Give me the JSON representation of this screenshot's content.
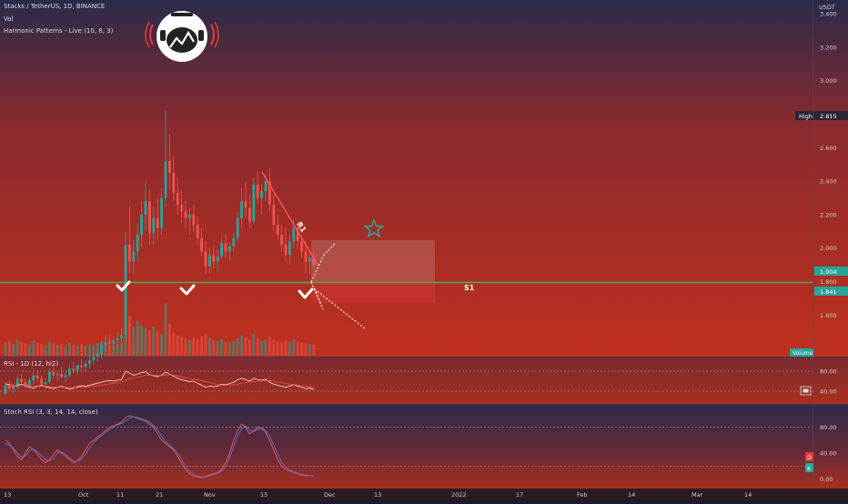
{
  "header": {
    "symbol_line": "Stacks / TetherUS, 1D, BINANCE",
    "vol_label": "Vol",
    "indicator_label": "Harmonic Patterns - Live (10, 8, 3)"
  },
  "colors": {
    "up": "#26a69a",
    "down": "#ef5350",
    "level": "#4caf50",
    "trendline": "#ff5252"
  },
  "chart_data": [
    {
      "type": "candlestick",
      "title": "Stacks / TetherUS, 1D, BINANCE",
      "currency": "USDT",
      "yticks": [
        "3.400",
        "3.200",
        "3.000",
        "2.800",
        "2.600",
        "2.400",
        "2.200",
        "2.000",
        "1.800",
        "1.600"
      ],
      "xticks": [
        "13",
        "Oct",
        "11",
        "21",
        "Nov",
        "15",
        "Dec",
        "13",
        "2022",
        "17",
        "Feb",
        "14",
        "Mar",
        "14"
      ],
      "ylim": [
        1.39,
        3.46
      ],
      "high_label": "High",
      "high_value": "2.815",
      "price_label_1": "1.904",
      "price_label_2": "1.841",
      "volume_badge": "Volume",
      "annotations": {
        "resistance_label": "R1",
        "support_label": "S1"
      },
      "candles_ohlc": [
        [
          1.13,
          1.2,
          1.12,
          1.18
        ],
        [
          1.18,
          1.21,
          1.15,
          1.16
        ],
        [
          1.16,
          1.19,
          1.13,
          1.17
        ],
        [
          1.17,
          1.24,
          1.16,
          1.22
        ],
        [
          1.22,
          1.25,
          1.18,
          1.2
        ],
        [
          1.2,
          1.22,
          1.16,
          1.18
        ],
        [
          1.18,
          1.23,
          1.17,
          1.21
        ],
        [
          1.21,
          1.26,
          1.19,
          1.24
        ],
        [
          1.24,
          1.27,
          1.2,
          1.22
        ],
        [
          1.22,
          1.24,
          1.18,
          1.19
        ],
        [
          1.19,
          1.22,
          1.16,
          1.2
        ],
        [
          1.2,
          1.28,
          1.19,
          1.26
        ],
        [
          1.26,
          1.3,
          1.22,
          1.24
        ],
        [
          1.24,
          1.27,
          1.21,
          1.25
        ],
        [
          1.25,
          1.29,
          1.22,
          1.23
        ],
        [
          1.23,
          1.26,
          1.2,
          1.24
        ],
        [
          1.24,
          1.3,
          1.23,
          1.28
        ],
        [
          1.28,
          1.32,
          1.25,
          1.27
        ],
        [
          1.27,
          1.31,
          1.24,
          1.3
        ],
        [
          1.3,
          1.34,
          1.27,
          1.29
        ],
        [
          1.29,
          1.33,
          1.26,
          1.31
        ],
        [
          1.31,
          1.36,
          1.28,
          1.33
        ],
        [
          1.33,
          1.38,
          1.3,
          1.35
        ],
        [
          1.35,
          1.4,
          1.32,
          1.37
        ],
        [
          1.37,
          1.45,
          1.34,
          1.42
        ],
        [
          1.42,
          1.48,
          1.38,
          1.44
        ],
        [
          1.44,
          1.49,
          1.4,
          1.43
        ],
        [
          1.43,
          1.47,
          1.39,
          1.45
        ],
        [
          1.45,
          1.5,
          1.41,
          1.46
        ],
        [
          1.46,
          1.52,
          1.43,
          1.48
        ],
        [
          1.48,
          2.1,
          1.46,
          2.02
        ],
        [
          2.02,
          2.25,
          1.85,
          1.92
        ],
        [
          1.92,
          2.05,
          1.84,
          1.98
        ],
        [
          1.98,
          2.15,
          1.92,
          2.08
        ],
        [
          2.08,
          2.28,
          2.01,
          2.2
        ],
        [
          2.2,
          2.4,
          2.1,
          2.28
        ],
        [
          2.28,
          2.35,
          2.02,
          2.09
        ],
        [
          2.09,
          2.25,
          2.02,
          2.18
        ],
        [
          2.18,
          2.3,
          2.05,
          2.12
        ],
        [
          2.12,
          2.36,
          2.08,
          2.3
        ],
        [
          2.3,
          2.82,
          2.25,
          2.52
        ],
        [
          2.52,
          2.68,
          2.35,
          2.45
        ],
        [
          2.45,
          2.55,
          2.28,
          2.33
        ],
        [
          2.33,
          2.42,
          2.2,
          2.26
        ],
        [
          2.26,
          2.35,
          2.15,
          2.22
        ],
        [
          2.22,
          2.28,
          2.12,
          2.18
        ],
        [
          2.18,
          2.24,
          2.08,
          2.2
        ],
        [
          2.2,
          2.26,
          2.1,
          2.14
        ],
        [
          2.14,
          2.19,
          2.02,
          2.06
        ],
        [
          2.06,
          2.12,
          1.95,
          1.98
        ],
        [
          1.98,
          2.04,
          1.84,
          1.89
        ],
        [
          1.89,
          2.0,
          1.85,
          1.96
        ],
        [
          1.96,
          2.02,
          1.88,
          1.92
        ],
        [
          1.92,
          1.99,
          1.86,
          1.95
        ],
        [
          1.95,
          2.06,
          1.93,
          2.03
        ],
        [
          2.03,
          2.08,
          1.94,
          1.98
        ],
        [
          1.98,
          2.03,
          1.93,
          2.01
        ],
        [
          2.01,
          2.09,
          1.98,
          2.06
        ],
        [
          2.06,
          2.22,
          2.04,
          2.18
        ],
        [
          2.18,
          2.36,
          2.12,
          2.28
        ],
        [
          2.28,
          2.4,
          2.18,
          2.24
        ],
        [
          2.24,
          2.32,
          2.12,
          2.16
        ],
        [
          2.16,
          2.42,
          2.14,
          2.38
        ],
        [
          2.38,
          2.46,
          2.26,
          2.3
        ],
        [
          2.3,
          2.38,
          2.2,
          2.34
        ],
        [
          2.34,
          2.44,
          2.28,
          2.4
        ],
        [
          2.4,
          2.48,
          2.22,
          2.26
        ],
        [
          2.26,
          2.32,
          2.1,
          2.14
        ],
        [
          2.14,
          2.2,
          2.05,
          2.08
        ],
        [
          2.08,
          2.14,
          1.98,
          2.02
        ],
        [
          2.02,
          2.12,
          1.92,
          1.96
        ],
        [
          1.96,
          2.08,
          1.9,
          2.04
        ],
        [
          2.04,
          2.18,
          2.0,
          2.12
        ],
        [
          2.12,
          2.16,
          2.0,
          2.04
        ],
        [
          2.04,
          2.08,
          1.94,
          1.98
        ],
        [
          1.98,
          2.04,
          1.85,
          1.92
        ],
        [
          1.92,
          1.98,
          1.84,
          1.94
        ],
        [
          1.94,
          1.98,
          1.88,
          1.9
        ]
      ],
      "volumes": [
        0.18,
        0.2,
        0.16,
        0.22,
        0.19,
        0.17,
        0.15,
        0.21,
        0.18,
        0.16,
        0.14,
        0.19,
        0.17,
        0.15,
        0.16,
        0.13,
        0.18,
        0.15,
        0.14,
        0.16,
        0.13,
        0.15,
        0.14,
        0.17,
        0.19,
        0.16,
        0.15,
        0.14,
        0.16,
        0.18,
        0.95,
        0.55,
        0.4,
        0.48,
        0.42,
        0.38,
        0.35,
        0.4,
        0.34,
        0.3,
        0.72,
        0.45,
        0.32,
        0.28,
        0.26,
        0.24,
        0.22,
        0.25,
        0.23,
        0.27,
        0.3,
        0.24,
        0.21,
        0.2,
        0.22,
        0.19,
        0.18,
        0.2,
        0.24,
        0.28,
        0.26,
        0.22,
        0.3,
        0.24,
        0.21,
        0.23,
        0.27,
        0.22,
        0.2,
        0.18,
        0.21,
        0.19,
        0.23,
        0.2,
        0.18,
        0.17,
        0.16,
        0.15
      ]
    },
    {
      "type": "line",
      "title": "RSI - 1D (12, hl2)",
      "yticks": [
        "80.00",
        "40.00"
      ],
      "ylim": [
        20,
        100
      ],
      "series": [
        {
          "values": [
            55,
            53,
            50,
            52,
            54,
            51,
            48,
            46,
            50,
            52,
            49,
            47,
            45,
            48,
            50,
            47,
            44,
            46,
            49,
            51,
            50,
            52,
            54,
            56,
            58,
            60,
            61,
            60,
            62,
            63,
            80,
            76,
            72,
            74,
            77,
            79,
            73,
            71,
            69,
            72,
            78,
            74,
            70,
            66,
            63,
            61,
            59,
            60,
            56,
            52,
            48,
            50,
            49,
            50,
            54,
            53,
            55,
            58,
            63,
            66,
            63,
            60,
            66,
            63,
            62,
            64,
            58,
            54,
            52,
            50,
            48,
            50,
            53,
            50,
            48,
            45,
            46,
            44
          ]
        },
        {
          "values": [
            52,
            52,
            51,
            51,
            52,
            52,
            51,
            50,
            50,
            50,
            50,
            49,
            48,
            48,
            48,
            48,
            47,
            47,
            47,
            48,
            48,
            49,
            50,
            51,
            52,
            53,
            55,
            56,
            57,
            58,
            62,
            65,
            67,
            68,
            70,
            72,
            72,
            72,
            71,
            71,
            72,
            73,
            72,
            71,
            69,
            67,
            65,
            64,
            63,
            61,
            59,
            57,
            55,
            53,
            52,
            52,
            52,
            53,
            54,
            56,
            57,
            58,
            59,
            60,
            60,
            61,
            61,
            60,
            58,
            57,
            55,
            54,
            53,
            52,
            51,
            50,
            49,
            48
          ]
        }
      ]
    },
    {
      "type": "line",
      "title": "Stoch RSI (3, 3, 14, 14, close)",
      "yticks": [
        "80.00",
        "40.00",
        "0.00"
      ],
      "ylim": [
        -5,
        105
      ],
      "legend_badges": [
        "D",
        "K"
      ],
      "series": [
        {
          "name": "D",
          "values": [
            60,
            55,
            45,
            35,
            30,
            40,
            50,
            45,
            38,
            30,
            25,
            30,
            38,
            45,
            40,
            35,
            30,
            25,
            28,
            35,
            45,
            55,
            60,
            65,
            70,
            75,
            80,
            82,
            85,
            88,
            95,
            98,
            96,
            94,
            92,
            90,
            85,
            80,
            70,
            60,
            55,
            50,
            45,
            35,
            25,
            15,
            8,
            4,
            3,
            2,
            4,
            6,
            8,
            10,
            15,
            25,
            40,
            60,
            75,
            85,
            80,
            70,
            75,
            80,
            78,
            72,
            60,
            45,
            30,
            20,
            15,
            12,
            10,
            8,
            6,
            5,
            5,
            4
          ]
        },
        {
          "name": "K",
          "values": [
            55,
            52,
            48,
            40,
            34,
            36,
            44,
            46,
            42,
            36,
            30,
            28,
            32,
            40,
            42,
            38,
            33,
            28,
            27,
            31,
            38,
            48,
            56,
            62,
            67,
            72,
            77,
            81,
            84,
            86,
            90,
            94,
            96,
            95,
            93,
            91,
            88,
            83,
            76,
            66,
            58,
            52,
            47,
            40,
            30,
            20,
            12,
            7,
            4,
            3,
            3,
            5,
            7,
            9,
            12,
            20,
            32,
            50,
            66,
            78,
            82,
            76,
            73,
            77,
            79,
            75,
            66,
            53,
            38,
            26,
            18,
            14,
            11,
            9,
            7,
            6,
            5,
            5
          ]
        }
      ]
    }
  ]
}
